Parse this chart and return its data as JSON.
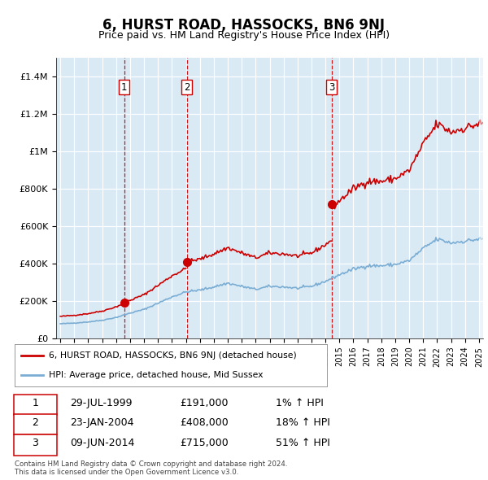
{
  "title": "6, HURST ROAD, HASSOCKS, BN6 9NJ",
  "subtitle": "Price paid vs. HM Land Registry's House Price Index (HPI)",
  "ylabel_ticks": [
    "£0",
    "£200K",
    "£400K",
    "£600K",
    "£800K",
    "£1M",
    "£1.2M",
    "£1.4M"
  ],
  "ylabel_values": [
    0,
    200000,
    400000,
    600000,
    800000,
    1000000,
    1200000,
    1400000
  ],
  "ylim": [
    0,
    1500000
  ],
  "xlim_start": 1994.7,
  "xlim_end": 2025.3,
  "bg_color": "#daeaf5",
  "grid_color": "#ffffff",
  "line_color_red": "#cc0000",
  "line_color_blue": "#7aadd4",
  "sale_dates": [
    1999.58,
    2004.07,
    2014.44
  ],
  "sale_prices": [
    191000,
    408000,
    715000
  ],
  "sale_labels": [
    "1",
    "2",
    "3"
  ],
  "hpi_base_monthly": {
    "start_year": 1995,
    "start_month": 1,
    "end_year": 2025,
    "end_month": 6
  },
  "footnote": "Contains HM Land Registry data © Crown copyright and database right 2024.\nThis data is licensed under the Open Government Licence v3.0.",
  "legend1": "6, HURST ROAD, HASSOCKS, BN6 9NJ (detached house)",
  "legend2": "HPI: Average price, detached house, Mid Sussex",
  "table_data": [
    [
      "1",
      "29-JUL-1999",
      "£191,000",
      "1% ↑ HPI"
    ],
    [
      "2",
      "23-JAN-2004",
      "£408,000",
      "18% ↑ HPI"
    ],
    [
      "3",
      "09-JUN-2014",
      "£715,000",
      "51% ↑ HPI"
    ]
  ],
  "title_fontsize": 12,
  "subtitle_fontsize": 9,
  "tick_fontsize": 8
}
